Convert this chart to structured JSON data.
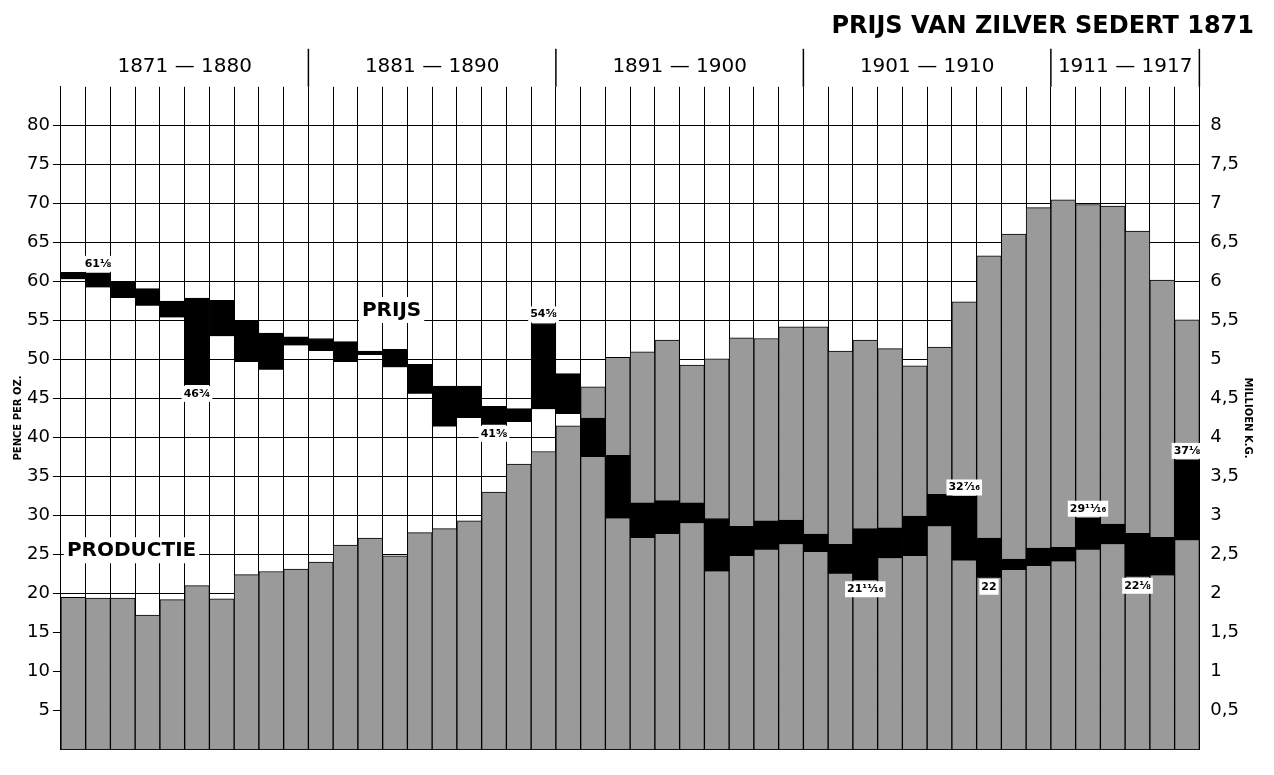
{
  "chart_data": {
    "type": "bar",
    "title": "PRIJS VAN ZILVER SEDERT 1871",
    "ylabel": "PENCE PER OZ.",
    "y2label": "MILLIOEN K.G.",
    "categories": [
      null,
      null,
      null,
      null,
      null,
      null,
      null,
      null,
      null,
      null,
      null,
      null,
      null,
      null,
      null,
      null,
      null,
      null,
      null,
      null,
      null,
      null,
      null,
      null,
      null,
      null,
      null,
      null,
      null,
      null,
      null,
      null,
      null,
      null,
      null,
      null,
      null,
      null,
      null,
      null,
      null,
      null,
      null,
      null,
      null,
      null
    ],
    "ylim": [
      0,
      85
    ],
    "yticks": [
      5,
      10,
      15,
      20,
      25,
      30,
      35,
      40,
      45,
      50,
      55,
      60,
      65,
      70,
      75,
      80
    ],
    "y2lim": [
      0,
      8.5
    ],
    "y2ticks": [
      {
        "value": 0.5,
        "label": "0,5"
      },
      1,
      {
        "value": 1.5,
        "label": "1,5"
      },
      2,
      {
        "value": 2.5,
        "label": "2,5"
      },
      3,
      {
        "value": 3.5,
        "label": "3,5"
      },
      4,
      {
        "value": 4.5,
        "label": "4,5"
      },
      5,
      {
        "value": 5.5,
        "label": "5,5"
      },
      6,
      {
        "value": 6.5,
        "label": "6,5"
      },
      7,
      {
        "value": 7.5,
        "label": "7,5"
      },
      8
    ],
    "grid": true,
    "series": [
      {
        "name": "PRIJS",
        "color": "#000000",
        "base": [
          60.3,
          59.25,
          57.9,
          56.9,
          55.4,
          46.75,
          53,
          49.7,
          48.7,
          51.8,
          51.1,
          49.7,
          50.6,
          49,
          45.6,
          41.4,
          42.5,
          41.625,
          42,
          43.625,
          43,
          37.5,
          29.6,
          27.1,
          27.6,
          29,
          22.8,
          24.8,
          25.6,
          26.3,
          25.3,
          22.5,
          21.6875,
          24.5,
          24.8,
          28.6,
          24.2,
          22,
          23,
          23.5,
          24.1,
          25.6,
          26.3,
          22.125,
          22.3,
          26.8
        ],
        "values": [
          0.9,
          1.875,
          2.1,
          2.2,
          2.1,
          11.15,
          4.6,
          5.2,
          4.7,
          1.1,
          1.6,
          2.6,
          0.5,
          2.3,
          3.8,
          5.2,
          4.1,
          2.375,
          1.7,
          11,
          5.2,
          5,
          8.1,
          4.5,
          4.3,
          2.6,
          6.8,
          3.8,
          3.7,
          3.1,
          2.3,
          3.8,
          6.6125,
          3.9,
          5.1,
          4.1,
          8.2375,
          5.1,
          1.4,
          2.3,
          1.8,
          4.0875,
          2.6,
          5.575,
          4.9,
          10.325
        ]
      },
      {
        "name": "PRODUCTIE",
        "color": "#9a9a9a",
        "axis": "y2",
        "values": [
          1.95,
          1.94,
          1.94,
          1.72,
          1.92,
          2.1,
          1.93,
          2.24,
          2.28,
          2.31,
          2.4,
          2.62,
          2.71,
          2.48,
          2.78,
          2.83,
          2.93,
          3.3,
          3.66,
          3.82,
          4.15,
          4.65,
          5.03,
          5.1,
          5.25,
          4.93,
          5.01,
          5.28,
          5.27,
          5.42,
          5.42,
          5.11,
          5.25,
          5.14,
          4.92,
          5.16,
          5.74,
          6.33,
          6.61,
          6.95,
          7.05,
          6.99,
          6.97,
          6.65,
          6.02,
          5.51
        ]
      }
    ],
    "annotations": [
      "1871 — 1880",
      "1881 — 1890",
      "1891 — 1900",
      "1901 — 1910",
      "1911 — 1917",
      {
        "text": "61⅛",
        "y": 61.125
      },
      {
        "text": "46¾",
        "y": 46.75
      },
      {
        "text": "41⅝",
        "y": 41.625
      },
      {
        "text": "54⅝",
        "y": 54.625
      },
      {
        "text": "21¹¹⁄₁₆",
        "y": 21.6875
      },
      {
        "text": "32⁷⁄₁₆",
        "y": 32.4375
      },
      {
        "text": "22",
        "y": 22
      },
      {
        "text": "29¹¹⁄₁₆",
        "y": 29.6875
      },
      {
        "text": "22⅛",
        "y": 22.125
      },
      {
        "text": "37⅛",
        "y": 37.125
      }
    ]
  }
}
